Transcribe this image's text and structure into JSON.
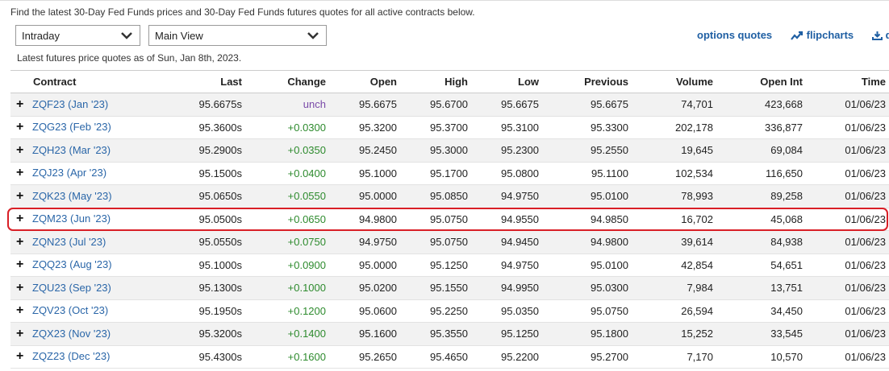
{
  "intro_text": "Find the latest 30-Day Fed Funds prices and 30-Day Fed Funds futures quotes for all active contracts below.",
  "controls": {
    "period_select": "Intraday",
    "view_select": "Main View",
    "options_link": "options quotes",
    "flipcharts_link": "flipcharts",
    "download_link": "d"
  },
  "as_of": "Latest futures price quotes as of Sun, Jan 8th, 2023.",
  "columns": [
    "Contract",
    "Last",
    "Change",
    "Open",
    "High",
    "Low",
    "Previous",
    "Volume",
    "Open Int",
    "Time"
  ],
  "rows": [
    {
      "contract": "ZQF23 (Jan '23)",
      "last": "95.6675s",
      "change": "unch",
      "open": "95.6675",
      "high": "95.6700",
      "low": "95.6675",
      "previous": "95.6675",
      "volume": "74,701",
      "open_int": "423,668",
      "time": "01/06/23"
    },
    {
      "contract": "ZQG23 (Feb '23)",
      "last": "95.3600s",
      "change": "+0.0300",
      "open": "95.3200",
      "high": "95.3700",
      "low": "95.3100",
      "previous": "95.3300",
      "volume": "202,178",
      "open_int": "336,877",
      "time": "01/06/23"
    },
    {
      "contract": "ZQH23 (Mar '23)",
      "last": "95.2900s",
      "change": "+0.0350",
      "open": "95.2450",
      "high": "95.3000",
      "low": "95.2300",
      "previous": "95.2550",
      "volume": "19,645",
      "open_int": "69,084",
      "time": "01/06/23"
    },
    {
      "contract": "ZQJ23 (Apr '23)",
      "last": "95.1500s",
      "change": "+0.0400",
      "open": "95.1000",
      "high": "95.1700",
      "low": "95.0800",
      "previous": "95.1100",
      "volume": "102,534",
      "open_int": "116,650",
      "time": "01/06/23"
    },
    {
      "contract": "ZQK23 (May '23)",
      "last": "95.0650s",
      "change": "+0.0550",
      "open": "95.0000",
      "high": "95.0850",
      "low": "94.9750",
      "previous": "95.0100",
      "volume": "78,993",
      "open_int": "89,258",
      "time": "01/06/23"
    },
    {
      "contract": "ZQM23 (Jun '23)",
      "last": "95.0500s",
      "change": "+0.0650",
      "open": "94.9800",
      "high": "95.0750",
      "low": "94.9550",
      "previous": "94.9850",
      "volume": "16,702",
      "open_int": "45,068",
      "time": "01/06/23"
    },
    {
      "contract": "ZQN23 (Jul '23)",
      "last": "95.0550s",
      "change": "+0.0750",
      "open": "94.9750",
      "high": "95.0750",
      "low": "94.9450",
      "previous": "94.9800",
      "volume": "39,614",
      "open_int": "84,938",
      "time": "01/06/23"
    },
    {
      "contract": "ZQQ23 (Aug '23)",
      "last": "95.1000s",
      "change": "+0.0900",
      "open": "95.0000",
      "high": "95.1250",
      "low": "94.9750",
      "previous": "95.0100",
      "volume": "42,854",
      "open_int": "54,651",
      "time": "01/06/23"
    },
    {
      "contract": "ZQU23 (Sep '23)",
      "last": "95.1300s",
      "change": "+0.1000",
      "open": "95.0200",
      "high": "95.1550",
      "low": "94.9950",
      "previous": "95.0300",
      "volume": "7,984",
      "open_int": "13,751",
      "time": "01/06/23"
    },
    {
      "contract": "ZQV23 (Oct '23)",
      "last": "95.1950s",
      "change": "+0.1200",
      "open": "95.0600",
      "high": "95.2250",
      "low": "95.0350",
      "previous": "95.0750",
      "volume": "26,594",
      "open_int": "34,450",
      "time": "01/06/23"
    },
    {
      "contract": "ZQX23 (Nov '23)",
      "last": "95.3200s",
      "change": "+0.1400",
      "open": "95.1600",
      "high": "95.3550",
      "low": "95.1250",
      "previous": "95.1800",
      "volume": "15,252",
      "open_int": "33,545",
      "time": "01/06/23"
    },
    {
      "contract": "ZQZ23 (Dec '23)",
      "last": "95.4300s",
      "change": "+0.1600",
      "open": "95.2650",
      "high": "95.4650",
      "low": "95.2200",
      "previous": "95.2700",
      "volume": "7,170",
      "open_int": "10,570",
      "time": "01/06/23"
    }
  ],
  "colors": {
    "link": "#2a66a8",
    "change_up": "#2e8b2e",
    "change_unch": "#7a4aa8",
    "highlight": "#d91f26"
  },
  "icons": {
    "select_arrow": "chevron-down-icon",
    "flipcharts": "trend-chart-icon",
    "download": "download-icon",
    "expand": "plus-icon"
  }
}
